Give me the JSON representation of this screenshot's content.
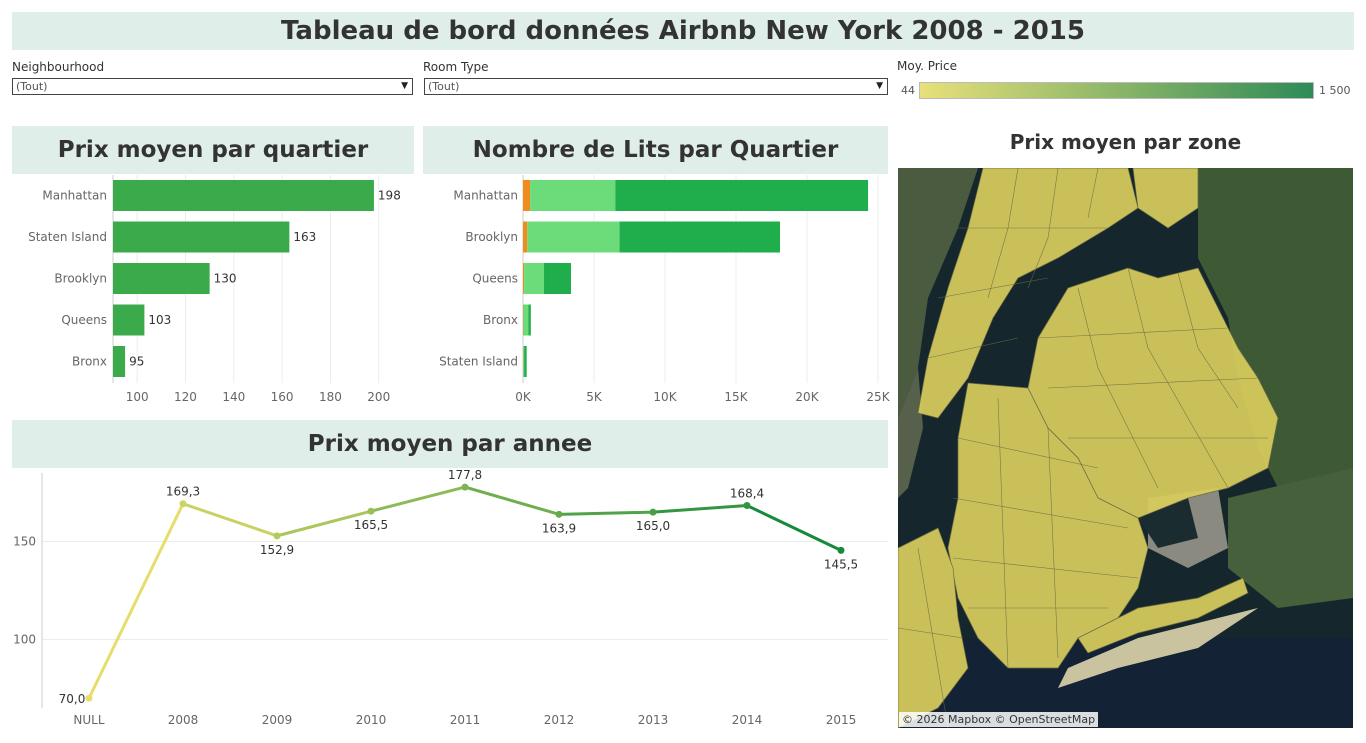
{
  "title": "Tableau de bord données Airbnb New York 2008 - 2015",
  "filters": {
    "neighbourhood": {
      "label": "Neighbourhood",
      "value": "(Tout)"
    },
    "room_type": {
      "label": "Room Type",
      "value": "(Tout)"
    }
  },
  "legend": {
    "label": "Moy. Price",
    "min_label": "44",
    "max_label": "1 500",
    "color_low": "#e8e07a",
    "color_high": "#2e8b57"
  },
  "colors": {
    "bar_green": "#3aaa4a",
    "stack_orange": "#f08c1e",
    "stack_light": "#6cdb7a",
    "stack_dark": "#1fae4b",
    "map_zone": "#d8cc5c",
    "line_low": "#e6de6a",
    "line_high": "#158a3a"
  },
  "map": {
    "title": "Prix moyen par zone",
    "credit": "© 2026 Mapbox  © OpenStreetMap"
  },
  "chart_data": [
    {
      "type": "bar",
      "title": "Prix moyen par quartier",
      "categories": [
        "Manhattan",
        "Staten Island",
        "Brooklyn",
        "Queens",
        "Bronx"
      ],
      "values": [
        198,
        163,
        130,
        103,
        95
      ],
      "data_labels": [
        "198",
        "163",
        "130",
        "103",
        "95"
      ],
      "xlim": [
        90,
        215
      ],
      "xticks": [
        100,
        120,
        140,
        160,
        180,
        200
      ],
      "xtick_labels": [
        "100",
        "120",
        "140",
        "160",
        "180",
        "200"
      ],
      "grid": true
    },
    {
      "type": "bar",
      "stacked": true,
      "title": "Nombre de Lits par Quartier",
      "categories": [
        "Manhattan",
        "Brooklyn",
        "Queens",
        "Bronx",
        "Staten Island"
      ],
      "series": [
        {
          "values": [
            500,
            300,
            80,
            30,
            20
          ]
        },
        {
          "values": [
            6000,
            6500,
            1400,
            350,
            60
          ]
        },
        {
          "values": [
            17800,
            11300,
            1900,
            170,
            180
          ]
        }
      ],
      "xlim": [
        0,
        25000
      ],
      "xticks": [
        0,
        5000,
        10000,
        15000,
        20000,
        25000
      ],
      "xtick_labels": [
        "0K",
        "5K",
        "10K",
        "15K",
        "20K",
        "25K"
      ],
      "grid": true
    },
    {
      "type": "line",
      "title": "Prix moyen par annee",
      "categories": [
        "NULL",
        "2008",
        "2009",
        "2010",
        "2011",
        "2012",
        "2013",
        "2014",
        "2015"
      ],
      "values": [
        70.0,
        169.3,
        152.9,
        165.5,
        177.8,
        163.9,
        165.0,
        168.4,
        145.5
      ],
      "data_labels": [
        "70,0",
        "169,3",
        "152,9",
        "165,5",
        "177,8",
        "163,9",
        "165,0",
        "168,4",
        "145,5"
      ],
      "ylim": [
        65,
        185
      ],
      "yticks": [
        100,
        150
      ],
      "ytick_labels": [
        "100",
        "150"
      ],
      "grid": true
    }
  ]
}
